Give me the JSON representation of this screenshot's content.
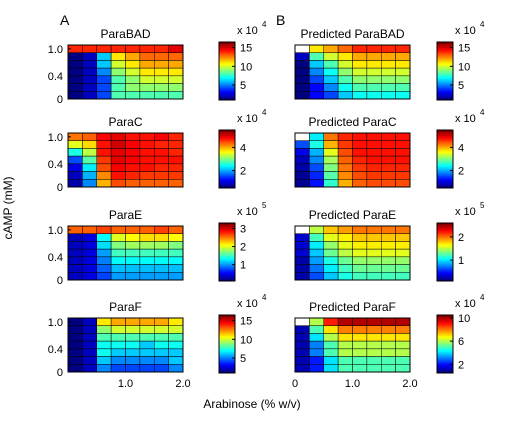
{
  "figure": {
    "panel_letters": [
      "A",
      "B"
    ],
    "ylabel": "cAMP (mM)",
    "xlabel": "Arabinose (% w/v)"
  },
  "chart_data": [
    {
      "id": "parabad",
      "type": "heatmap",
      "title": "ParaBAD",
      "cbar_ticks": [
        "5",
        "10",
        "15"
      ],
      "cbar_exp": "4",
      "cbar_range": [
        1,
        16.5
      ],
      "x_ticks": [],
      "y_ticks": [
        "1.0",
        "0.4",
        "0"
      ],
      "values": [
        [
          14,
          14,
          14,
          14,
          14,
          14,
          14,
          15
        ],
        [
          1,
          2,
          6,
          11,
          12,
          13,
          13,
          13
        ],
        [
          1,
          2,
          6,
          10,
          11,
          12,
          12,
          12
        ],
        [
          1,
          2,
          5,
          9,
          10,
          11,
          11,
          11
        ],
        [
          1,
          2,
          4,
          8,
          9,
          10,
          10,
          10
        ],
        [
          1,
          2,
          4,
          8,
          9,
          9,
          9,
          9
        ],
        [
          1,
          2,
          4,
          8,
          8,
          8,
          8,
          8
        ]
      ]
    },
    {
      "id": "pred-parabad",
      "type": "heatmap",
      "title": "Predicted ParaBAD",
      "cbar_ticks": [
        "5",
        "10",
        "15"
      ],
      "cbar_exp": "4",
      "cbar_range": [
        1,
        16.5
      ],
      "x_ticks": [],
      "y_ticks": [],
      "values": [
        [
          0,
          11,
          12,
          13,
          14,
          14,
          14,
          14
        ],
        [
          2,
          8,
          10,
          11,
          12,
          12,
          12,
          12
        ],
        [
          1,
          6,
          8,
          10,
          11,
          11,
          11,
          11
        ],
        [
          1,
          5,
          7,
          9,
          10,
          10,
          10,
          10
        ],
        [
          1,
          4,
          6,
          8,
          9,
          9,
          9,
          9
        ],
        [
          1,
          3,
          5,
          7,
          8,
          8,
          8,
          8
        ],
        [
          1,
          3,
          4,
          6,
          7,
          7,
          7,
          7
        ]
      ]
    },
    {
      "id": "parac",
      "type": "heatmap",
      "title": "ParaC",
      "cbar_ticks": [
        "2",
        "4"
      ],
      "cbar_exp": "4",
      "cbar_range": [
        0.5,
        5.5
      ],
      "x_ticks": [],
      "y_ticks": [
        "1.0",
        "0.4",
        "0"
      ],
      "values": [
        [
          4.3,
          4.4,
          4.9,
          5.0,
          4.8,
          4.8,
          4.9,
          4.7
        ],
        [
          3.5,
          3.8,
          4.8,
          5.1,
          4.9,
          4.8,
          4.7,
          4.7
        ],
        [
          2.5,
          3.3,
          4.8,
          5.0,
          4.9,
          4.8,
          4.8,
          4.7
        ],
        [
          1.5,
          2.8,
          4.6,
          5.0,
          4.9,
          4.8,
          4.8,
          4.8
        ],
        [
          1.0,
          2.3,
          4.5,
          4.9,
          4.8,
          4.8,
          4.7,
          4.7
        ],
        [
          0.8,
          2.0,
          4.2,
          4.8,
          4.7,
          4.6,
          4.6,
          4.6
        ],
        [
          0.7,
          1.8,
          4.0,
          4.5,
          4.4,
          4.4,
          4.4,
          4.4
        ]
      ]
    },
    {
      "id": "pred-parac",
      "type": "heatmap",
      "title": "Predicted ParaC",
      "cbar_ticks": [
        "2",
        "4"
      ],
      "cbar_exp": "4",
      "cbar_range": [
        0.5,
        5.5
      ],
      "x_ticks": [],
      "y_ticks": [],
      "values": [
        [
          0,
          2.3,
          4.3,
          4.7,
          4.8,
          4.8,
          4.8,
          4.8
        ],
        [
          1.5,
          2.5,
          4.0,
          4.6,
          4.8,
          4.8,
          4.8,
          4.8
        ],
        [
          1.0,
          2.0,
          3.5,
          4.5,
          4.8,
          4.8,
          4.8,
          4.8
        ],
        [
          0.8,
          1.8,
          3.2,
          4.4,
          4.7,
          4.8,
          4.8,
          4.8
        ],
        [
          0.7,
          1.5,
          3.0,
          4.3,
          4.6,
          4.7,
          4.7,
          4.7
        ],
        [
          0.6,
          1.3,
          2.8,
          4.2,
          4.5,
          4.6,
          4.6,
          4.6
        ],
        [
          0.6,
          1.2,
          2.6,
          4.0,
          4.4,
          4.5,
          4.5,
          4.5
        ]
      ]
    },
    {
      "id": "parae",
      "type": "heatmap",
      "title": "ParaE",
      "cbar_ticks": [
        "1",
        "2",
        "3"
      ],
      "cbar_exp": "5",
      "cbar_range": [
        0.1,
        3.3
      ],
      "x_ticks": [],
      "y_ticks": [
        "1.0",
        "0.4",
        "0"
      ],
      "values": [
        [
          2.6,
          2.6,
          2.7,
          2.6,
          2.6,
          2.6,
          2.7,
          2.6
        ],
        [
          0.3,
          0.4,
          1.3,
          2.0,
          2.1,
          2.2,
          2.2,
          2.1
        ],
        [
          0.3,
          0.4,
          1.2,
          1.7,
          1.8,
          1.8,
          1.8,
          1.7
        ],
        [
          0.3,
          0.4,
          1.0,
          1.5,
          1.5,
          1.5,
          1.5,
          1.5
        ],
        [
          0.3,
          0.4,
          0.9,
          1.3,
          1.3,
          1.3,
          1.3,
          1.3
        ],
        [
          0.3,
          0.4,
          0.8,
          1.1,
          1.1,
          1.1,
          1.1,
          1.1
        ],
        [
          0.3,
          0.4,
          0.7,
          1.0,
          1.0,
          1.0,
          1.0,
          1.0
        ]
      ]
    },
    {
      "id": "pred-parae",
      "type": "heatmap",
      "title": "Predicted ParaE",
      "cbar_ticks": [
        "1",
        "2"
      ],
      "cbar_exp": "5",
      "cbar_range": [
        0.1,
        2.6
      ],
      "x_ticks": [],
      "y_ticks": [],
      "values": [
        [
          0,
          1.5,
          1.8,
          1.9,
          2.0,
          2.0,
          2.0,
          2.0
        ],
        [
          0.3,
          1.2,
          1.6,
          1.7,
          1.8,
          1.8,
          1.8,
          1.8
        ],
        [
          0.3,
          1.0,
          1.4,
          1.6,
          1.7,
          1.7,
          1.7,
          1.7
        ],
        [
          0.3,
          0.9,
          1.3,
          1.5,
          1.6,
          1.6,
          1.6,
          1.6
        ],
        [
          0.2,
          0.8,
          1.1,
          1.3,
          1.4,
          1.4,
          1.4,
          1.4
        ],
        [
          0.2,
          0.7,
          1.0,
          1.2,
          1.3,
          1.3,
          1.3,
          1.3
        ],
        [
          0.2,
          0.6,
          0.9,
          1.1,
          1.2,
          1.2,
          1.2,
          1.2
        ]
      ]
    },
    {
      "id": "paraf",
      "type": "heatmap",
      "title": "ParaF",
      "cbar_ticks": [
        "5",
        "10",
        "15"
      ],
      "cbar_exp": "4",
      "cbar_range": [
        1,
        16.5
      ],
      "x_ticks": [
        "1.0",
        "2.0"
      ],
      "y_ticks": [
        "1.0",
        "0.4",
        "0"
      ],
      "values": [
        [
          1,
          2,
          11,
          12,
          12,
          12,
          12,
          11
        ],
        [
          1,
          2,
          9,
          10,
          10,
          10,
          10,
          10
        ],
        [
          1,
          2,
          8,
          8,
          8,
          8,
          8,
          8
        ],
        [
          1,
          2,
          7,
          7,
          7,
          6,
          7,
          7
        ],
        [
          1,
          2,
          7,
          6,
          6,
          6,
          6,
          6
        ],
        [
          1,
          2,
          6,
          5,
          5,
          5,
          5,
          6
        ],
        [
          1,
          2,
          5,
          4,
          4,
          4,
          4,
          5
        ]
      ]
    },
    {
      "id": "pred-paraf",
      "type": "heatmap",
      "title": "Predicted ParaF",
      "cbar_ticks": [
        "2",
        "6",
        "10"
      ],
      "cbar_exp": "4",
      "cbar_range": [
        0.5,
        10.5
      ],
      "x_ticks": [
        "0",
        "1.0",
        "2.0"
      ],
      "y_ticks": [],
      "values": [
        [
          0,
          6,
          9,
          10,
          10,
          10,
          10,
          10
        ],
        [
          1,
          5,
          7,
          8,
          8,
          8,
          8,
          8
        ],
        [
          1,
          4,
          6,
          7,
          7,
          7,
          7,
          7
        ],
        [
          1,
          3,
          5,
          6,
          6,
          6,
          6,
          6
        ],
        [
          1,
          3,
          5,
          6,
          6,
          6,
          6,
          6
        ],
        [
          1,
          2,
          4,
          5,
          5,
          5,
          5,
          5
        ],
        [
          1,
          2,
          4,
          5,
          5,
          5,
          5,
          5
        ]
      ]
    }
  ]
}
